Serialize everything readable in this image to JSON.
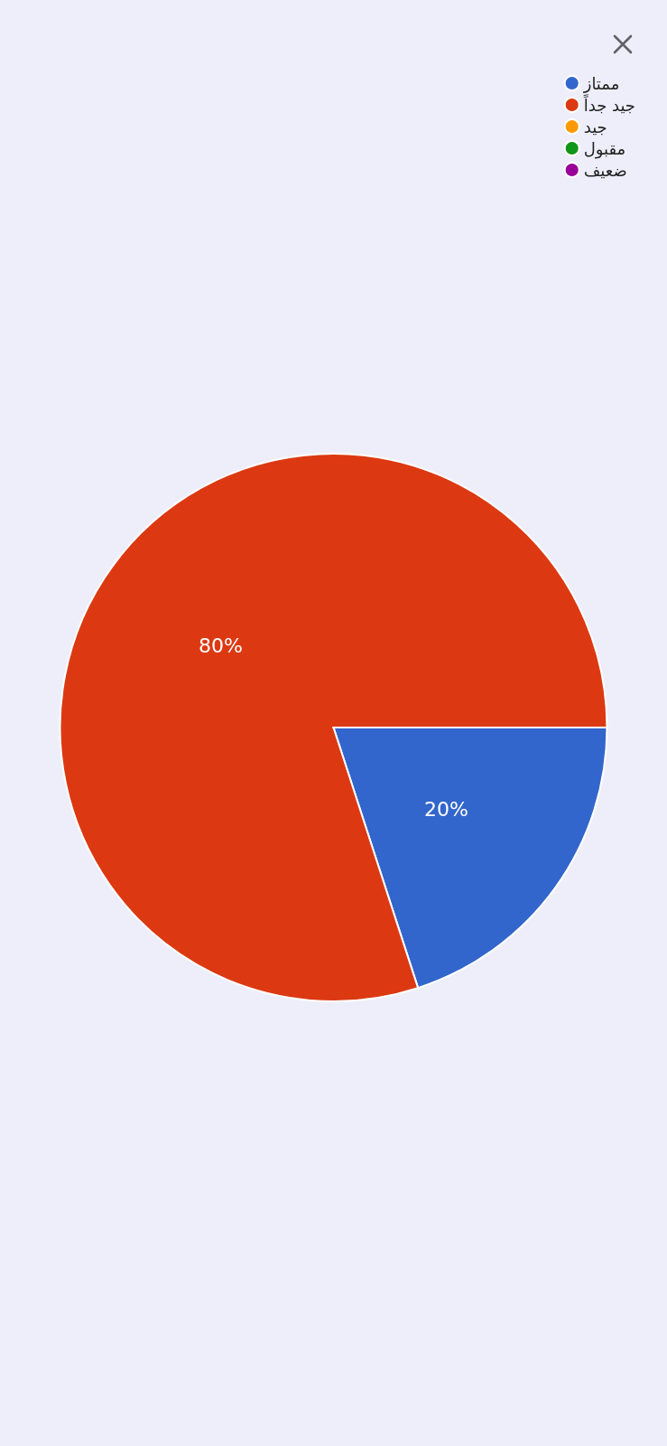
{
  "chart_data": {
    "type": "pie",
    "categories": [
      "ممتاز",
      "جيد جداً",
      "جيد",
      "مقبول",
      "ضعيف"
    ],
    "values": [
      20,
      80,
      0,
      0,
      0
    ],
    "value_labels": [
      "20%",
      "80%",
      null,
      null,
      null
    ],
    "colors": [
      "#3366cc",
      "#dc3912",
      "#ff9900",
      "#109618",
      "#990099"
    ],
    "legend": "top right"
  }
}
